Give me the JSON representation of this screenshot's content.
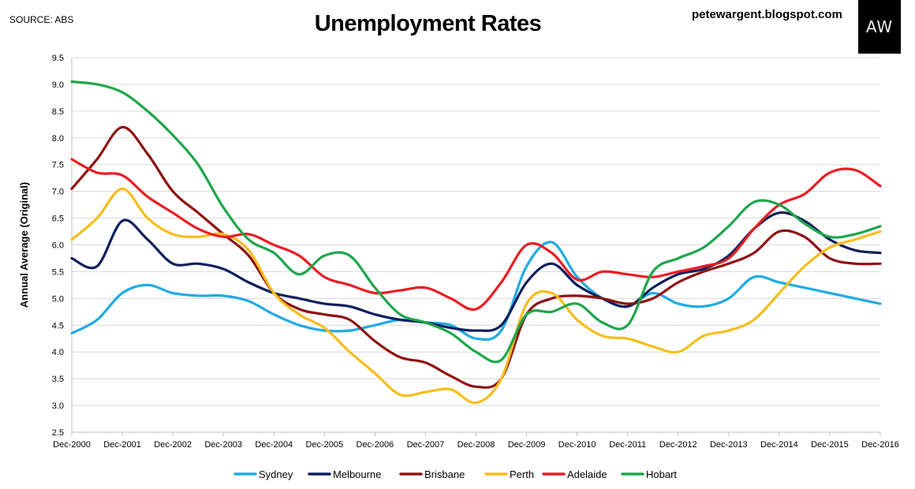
{
  "header": {
    "source": "SOURCE: ABS",
    "blog": "petewargent.blogspot.com",
    "logo_text": "AW"
  },
  "chart_data": {
    "type": "line",
    "title": "Unemployment Rates",
    "xlabel": "",
    "ylabel": "Annual Average (Original)",
    "ylim": [
      2.5,
      9.5
    ],
    "yticks": [
      "2.5",
      "3.0",
      "3.5",
      "4.0",
      "4.5",
      "5.0",
      "5.5",
      "6.0",
      "6.5",
      "7.0",
      "7.5",
      "8.0",
      "8.5",
      "9.0",
      "9.5"
    ],
    "xlim": [
      0,
      16
    ],
    "x_tick_labels": [
      "Dec-2000",
      "Dec-2001",
      "Dec-2002",
      "Dec-2003",
      "Dec-2004",
      "Dec-2005",
      "Dec-2006",
      "Dec-2007",
      "Dec-2008",
      "Dec-2009",
      "Dec-2010",
      "Dec-2011",
      "Dec-2012",
      "Dec-2013",
      "Dec-2014",
      "Dec-2015",
      "Dec-2016"
    ],
    "grid": "horizontal",
    "legend_position": "bottom",
    "x": [
      0,
      0.5,
      1,
      1.5,
      2,
      2.5,
      3,
      3.5,
      4,
      4.5,
      5,
      5.5,
      6,
      6.5,
      7,
      7.5,
      8,
      8.5,
      9,
      9.5,
      10,
      10.5,
      11,
      11.5,
      12,
      12.5,
      13,
      13.5,
      14,
      14.5,
      15,
      15.5,
      16
    ],
    "series": [
      {
        "name": "Sydney",
        "color": "#1fabe4",
        "values": [
          4.35,
          4.6,
          5.1,
          5.25,
          5.1,
          5.05,
          5.05,
          4.95,
          4.7,
          4.5,
          4.4,
          4.4,
          4.5,
          4.6,
          4.55,
          4.5,
          4.25,
          4.4,
          5.6,
          6.05,
          5.4,
          5.0,
          4.85,
          5.1,
          4.9,
          4.85,
          5.0,
          5.4,
          5.3,
          5.2,
          5.1,
          5.0,
          4.9
        ]
      },
      {
        "name": "Melbourne",
        "color": "#0d1f5c",
        "values": [
          5.75,
          5.6,
          6.45,
          6.1,
          5.65,
          5.65,
          5.55,
          5.3,
          5.1,
          5.0,
          4.9,
          4.85,
          4.7,
          4.6,
          4.55,
          4.45,
          4.4,
          4.5,
          5.3,
          5.65,
          5.25,
          5.0,
          4.85,
          5.2,
          5.45,
          5.55,
          5.8,
          6.3,
          6.6,
          6.45,
          6.1,
          5.9,
          5.85
        ]
      },
      {
        "name": "Brisbane",
        "color": "#8f1111",
        "values": [
          7.05,
          7.6,
          8.2,
          7.7,
          7.0,
          6.6,
          6.2,
          5.8,
          5.1,
          4.8,
          4.7,
          4.6,
          4.2,
          3.9,
          3.8,
          3.55,
          3.35,
          3.5,
          4.7,
          5.0,
          5.05,
          5.0,
          4.9,
          5.0,
          5.3,
          5.5,
          5.65,
          5.85,
          6.25,
          6.15,
          5.75,
          5.65,
          5.65
        ]
      },
      {
        "name": "Perth",
        "color": "#f8bd1b",
        "values": [
          6.1,
          6.5,
          7.05,
          6.5,
          6.2,
          6.15,
          6.2,
          5.9,
          5.1,
          4.7,
          4.45,
          4.0,
          3.6,
          3.2,
          3.25,
          3.3,
          3.05,
          3.5,
          4.9,
          5.1,
          4.6,
          4.3,
          4.25,
          4.1,
          4.0,
          4.3,
          4.4,
          4.6,
          5.1,
          5.6,
          5.95,
          6.1,
          6.25
        ]
      },
      {
        "name": "Adelaide",
        "color": "#eb1c24",
        "values": [
          7.6,
          7.35,
          7.3,
          6.9,
          6.6,
          6.3,
          6.15,
          6.2,
          6.0,
          5.8,
          5.4,
          5.25,
          5.1,
          5.15,
          5.2,
          5.0,
          4.8,
          5.3,
          6.0,
          5.85,
          5.35,
          5.5,
          5.45,
          5.4,
          5.5,
          5.6,
          5.75,
          6.3,
          6.75,
          6.95,
          7.35,
          7.4,
          7.1
        ]
      },
      {
        "name": "Hobart",
        "color": "#1da64a",
        "values": [
          9.05,
          9.0,
          8.85,
          8.5,
          8.05,
          7.5,
          6.7,
          6.1,
          5.85,
          5.45,
          5.8,
          5.8,
          5.2,
          4.7,
          4.55,
          4.35,
          4.0,
          3.85,
          4.7,
          4.75,
          4.9,
          4.55,
          4.5,
          5.5,
          5.75,
          5.95,
          6.35,
          6.8,
          6.75,
          6.4,
          6.15,
          6.2,
          6.35
        ]
      }
    ]
  }
}
